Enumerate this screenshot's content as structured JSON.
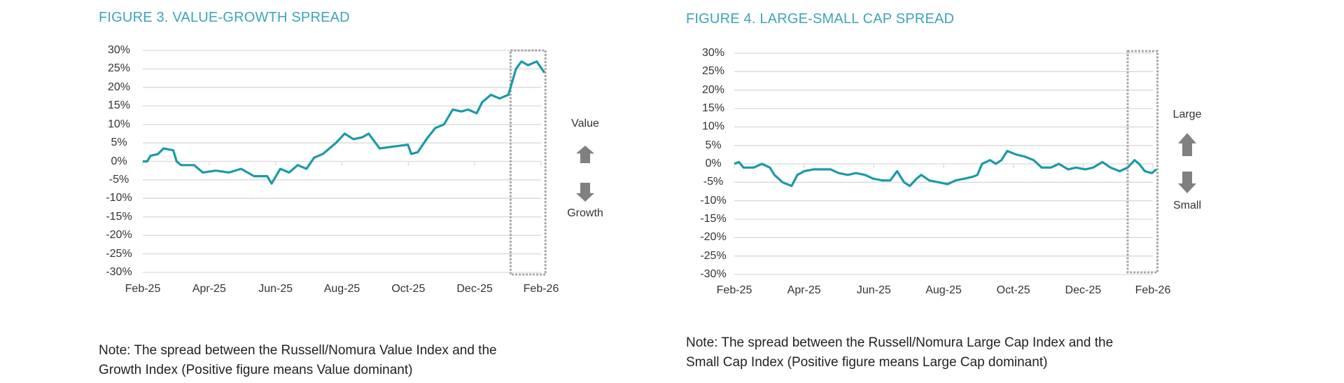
{
  "colors": {
    "title": "#3ba5b8",
    "line": "#1a9aa8",
    "grid": "#d9d9d9",
    "arrow": "#808080",
    "highlight_box": "#a6a6a6"
  },
  "chart_data": [
    {
      "type": "line",
      "title": "FIGURE 3. VALUE-GROWTH SPREAD",
      "note_lines": [
        "Note: The spread between the Russell/Nomura Value Index and the",
        "Growth Index (Positive figure means Value dominant)"
      ],
      "yticks": [
        "30%",
        "25%",
        "20%",
        "15%",
        "10%",
        "5%",
        "0%",
        "-5%",
        "-10%",
        "-15%",
        "-20%",
        "-25%",
        "-30%"
      ],
      "xticks": [
        "Feb-25",
        "Apr-25",
        "Jun-25",
        "Aug-25",
        "Oct-25",
        "Dec-25",
        "Feb-26"
      ],
      "ylim": [
        -30,
        30
      ],
      "xlim": [
        "2025-02-01",
        "2026-02-01"
      ],
      "grid": true,
      "highlight_box": [
        "2026-01-04",
        "2026-02-05"
      ],
      "annotation_up": "Value",
      "annotation_down": "Growth",
      "icons": [
        "arrow-up-icon",
        "arrow-down-icon"
      ],
      "series": [
        {
          "x": [
            "2025-02-01",
            "2025-02-05",
            "2025-02-08",
            "2025-02-15",
            "2025-02-20",
            "2025-03-01",
            "2025-03-04",
            "2025-03-08",
            "2025-03-20",
            "2025-03-28",
            "2025-04-09",
            "2025-04-21",
            "2025-05-02",
            "2025-05-14",
            "2025-05-26",
            "2025-05-30",
            "2025-06-07",
            "2025-06-15",
            "2025-06-23",
            "2025-07-01",
            "2025-07-08",
            "2025-07-16",
            "2025-07-28",
            "2025-08-05",
            "2025-08-13",
            "2025-08-21",
            "2025-08-27",
            "2025-09-06",
            "2025-09-18",
            "2025-10-02",
            "2025-10-05",
            "2025-10-11",
            "2025-10-19",
            "2025-10-27",
            "2025-11-04",
            "2025-11-12",
            "2025-11-20",
            "2025-11-26",
            "2025-12-04",
            "2025-12-09",
            "2025-12-17",
            "2025-12-25",
            "2026-01-02",
            "2026-01-04",
            "2026-01-09",
            "2026-01-14",
            "2026-01-20",
            "2026-01-28",
            "2026-02-04"
          ],
          "y": [
            0,
            0,
            1.5,
            2,
            3.5,
            3,
            0,
            -1,
            -1,
            -3,
            -2.5,
            -3,
            -2,
            -4,
            -4,
            -6,
            -2,
            -3,
            -1,
            -2,
            1,
            2,
            5,
            7.5,
            6,
            6.5,
            7.5,
            3.5,
            4,
            4.5,
            2,
            2.5,
            6,
            9,
            10,
            14,
            13.5,
            14,
            13,
            16,
            18,
            17,
            18,
            20,
            25,
            27,
            26,
            27,
            24
          ]
        }
      ]
    },
    {
      "type": "line",
      "title": "FIGURE 4. LARGE-SMALL CAP SPREAD",
      "note_lines": [
        "Note: The spread between the Russell/Nomura Large Cap Index and the",
        "Small Cap Index (Positive figure means Large Cap dominant)"
      ],
      "yticks": [
        "30%",
        "25%",
        "20%",
        "15%",
        "10%",
        "5%",
        "0%",
        "-5%",
        "-10%",
        "-15%",
        "-20%",
        "-25%",
        "-30%"
      ],
      "xticks": [
        "Feb-25",
        "Apr-25",
        "Jun-25",
        "Aug-25",
        "Oct-25",
        "Dec-25",
        "Feb-26"
      ],
      "ylim": [
        -30,
        30
      ],
      "xlim": [
        "2025-02-01",
        "2026-02-01"
      ],
      "grid": true,
      "highlight_box": [
        "2026-01-10",
        "2026-02-05"
      ],
      "annotation_up": "Large",
      "annotation_down": "Small",
      "icons": [
        "arrow-up-icon",
        "arrow-down-icon"
      ],
      "series": [
        {
          "x": [
            "2025-02-01",
            "2025-02-05",
            "2025-02-09",
            "2025-02-18",
            "2025-02-25",
            "2025-03-04",
            "2025-03-08",
            "2025-03-15",
            "2025-03-23",
            "2025-03-28",
            "2025-04-03",
            "2025-04-11",
            "2025-04-18",
            "2025-04-26",
            "2025-05-03",
            "2025-05-11",
            "2025-05-18",
            "2025-05-26",
            "2025-06-02",
            "2025-06-10",
            "2025-06-17",
            "2025-06-23",
            "2025-06-29",
            "2025-07-04",
            "2025-07-10",
            "2025-07-14",
            "2025-07-21",
            "2025-07-29",
            "2025-08-06",
            "2025-08-13",
            "2025-08-21",
            "2025-08-28",
            "2025-09-01",
            "2025-09-05",
            "2025-09-12",
            "2025-09-17",
            "2025-09-22",
            "2025-09-27",
            "2025-10-05",
            "2025-10-12",
            "2025-10-20",
            "2025-10-27",
            "2025-11-04",
            "2025-11-11",
            "2025-11-19",
            "2025-11-26",
            "2025-12-04",
            "2025-12-11",
            "2025-12-19",
            "2025-12-26",
            "2026-01-03",
            "2026-01-10",
            "2026-01-16",
            "2026-01-20",
            "2026-01-25",
            "2026-01-31",
            "2026-02-04"
          ],
          "y": [
            0,
            0.5,
            -1,
            -1,
            0,
            -1,
            -3,
            -5,
            -6,
            -3,
            -2,
            -1.5,
            -1.5,
            -1.5,
            -2.5,
            -3,
            -2.5,
            -3,
            -4,
            -4.5,
            -4.5,
            -2,
            -5,
            -6,
            -4,
            -3,
            -4.5,
            -5,
            -5.5,
            -4.5,
            -4,
            -3.5,
            -3,
            0,
            1,
            0,
            1,
            3.5,
            2.5,
            2,
            1,
            -1,
            -1,
            0,
            -1.5,
            -1,
            -1.5,
            -1,
            0.5,
            -1,
            -2,
            -1,
            1,
            0,
            -2,
            -2.5,
            -1.5
          ]
        }
      ]
    }
  ]
}
